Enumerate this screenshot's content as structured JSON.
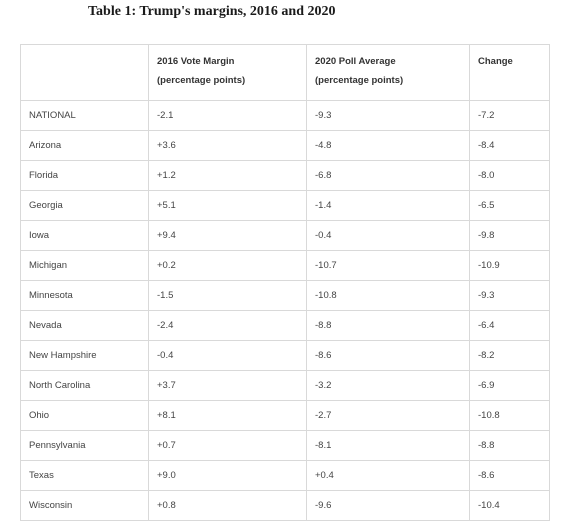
{
  "title": "Table 1: Trump's margins, 2016 and 2020",
  "headers": {
    "state": "",
    "margin_2016_line1": "2016 Vote Margin",
    "margin_2016_line2": "(percentage points)",
    "poll_2020_line1": "2020 Poll Average",
    "poll_2020_line2": "(percentage points)",
    "change": "Change"
  },
  "rows": [
    {
      "state": "NATIONAL",
      "margin_2016": "-2.1",
      "poll_2020": "-9.3",
      "change": "-7.2"
    },
    {
      "state": "Arizona",
      "margin_2016": "+3.6",
      "poll_2020": "-4.8",
      "change": "-8.4"
    },
    {
      "state": "Florida",
      "margin_2016": "+1.2",
      "poll_2020": "-6.8",
      "change": "-8.0"
    },
    {
      "state": "Georgia",
      "margin_2016": "+5.1",
      "poll_2020": "-1.4",
      "change": "-6.5"
    },
    {
      "state": "Iowa",
      "margin_2016": "+9.4",
      "poll_2020": "-0.4",
      "change": "-9.8"
    },
    {
      "state": "Michigan",
      "margin_2016": "+0.2",
      "poll_2020": "-10.7",
      "change": "-10.9"
    },
    {
      "state": "Minnesota",
      "margin_2016": "-1.5",
      "poll_2020": "-10.8",
      "change": "-9.3"
    },
    {
      "state": "Nevada",
      "margin_2016": "-2.4",
      "poll_2020": "-8.8",
      "change": "-6.4"
    },
    {
      "state": "New Hampshire",
      "margin_2016": "-0.4",
      "poll_2020": "-8.6",
      "change": "-8.2"
    },
    {
      "state": "North Carolina",
      "margin_2016": "+3.7",
      "poll_2020": "-3.2",
      "change": "-6.9"
    },
    {
      "state": "Ohio",
      "margin_2016": "+8.1",
      "poll_2020": "-2.7",
      "change": "-10.8"
    },
    {
      "state": "Pennsylvania",
      "margin_2016": "+0.7",
      "poll_2020": "-8.1",
      "change": "-8.8"
    },
    {
      "state": "Texas",
      "margin_2016": "+9.0",
      "poll_2020": "+0.4",
      "change": "-8.6"
    },
    {
      "state": "Wisconsin",
      "margin_2016": "+0.8",
      "poll_2020": "-9.6",
      "change": "-10.4"
    }
  ],
  "chart_data": {
    "type": "table",
    "title": "Table 1: Trump's margins, 2016 and 2020",
    "columns": [
      "",
      "2016 Vote Margin (percentage points)",
      "2020 Poll Average (percentage points)",
      "Change"
    ],
    "rows": [
      [
        "NATIONAL",
        -2.1,
        -9.3,
        -7.2
      ],
      [
        "Arizona",
        3.6,
        -4.8,
        -8.4
      ],
      [
        "Florida",
        1.2,
        -6.8,
        -8.0
      ],
      [
        "Georgia",
        5.1,
        -1.4,
        -6.5
      ],
      [
        "Iowa",
        9.4,
        -0.4,
        -9.8
      ],
      [
        "Michigan",
        0.2,
        -10.7,
        -10.9
      ],
      [
        "Minnesota",
        -1.5,
        -10.8,
        -9.3
      ],
      [
        "Nevada",
        -2.4,
        -8.8,
        -6.4
      ],
      [
        "New Hampshire",
        -0.4,
        -8.6,
        -8.2
      ],
      [
        "North Carolina",
        3.7,
        -3.2,
        -6.9
      ],
      [
        "Ohio",
        8.1,
        -2.7,
        -10.8
      ],
      [
        "Pennsylvania",
        0.7,
        -8.1,
        -8.8
      ],
      [
        "Texas",
        9.0,
        0.4,
        -8.6
      ],
      [
        "Wisconsin",
        0.8,
        -9.6,
        -10.4
      ]
    ]
  }
}
